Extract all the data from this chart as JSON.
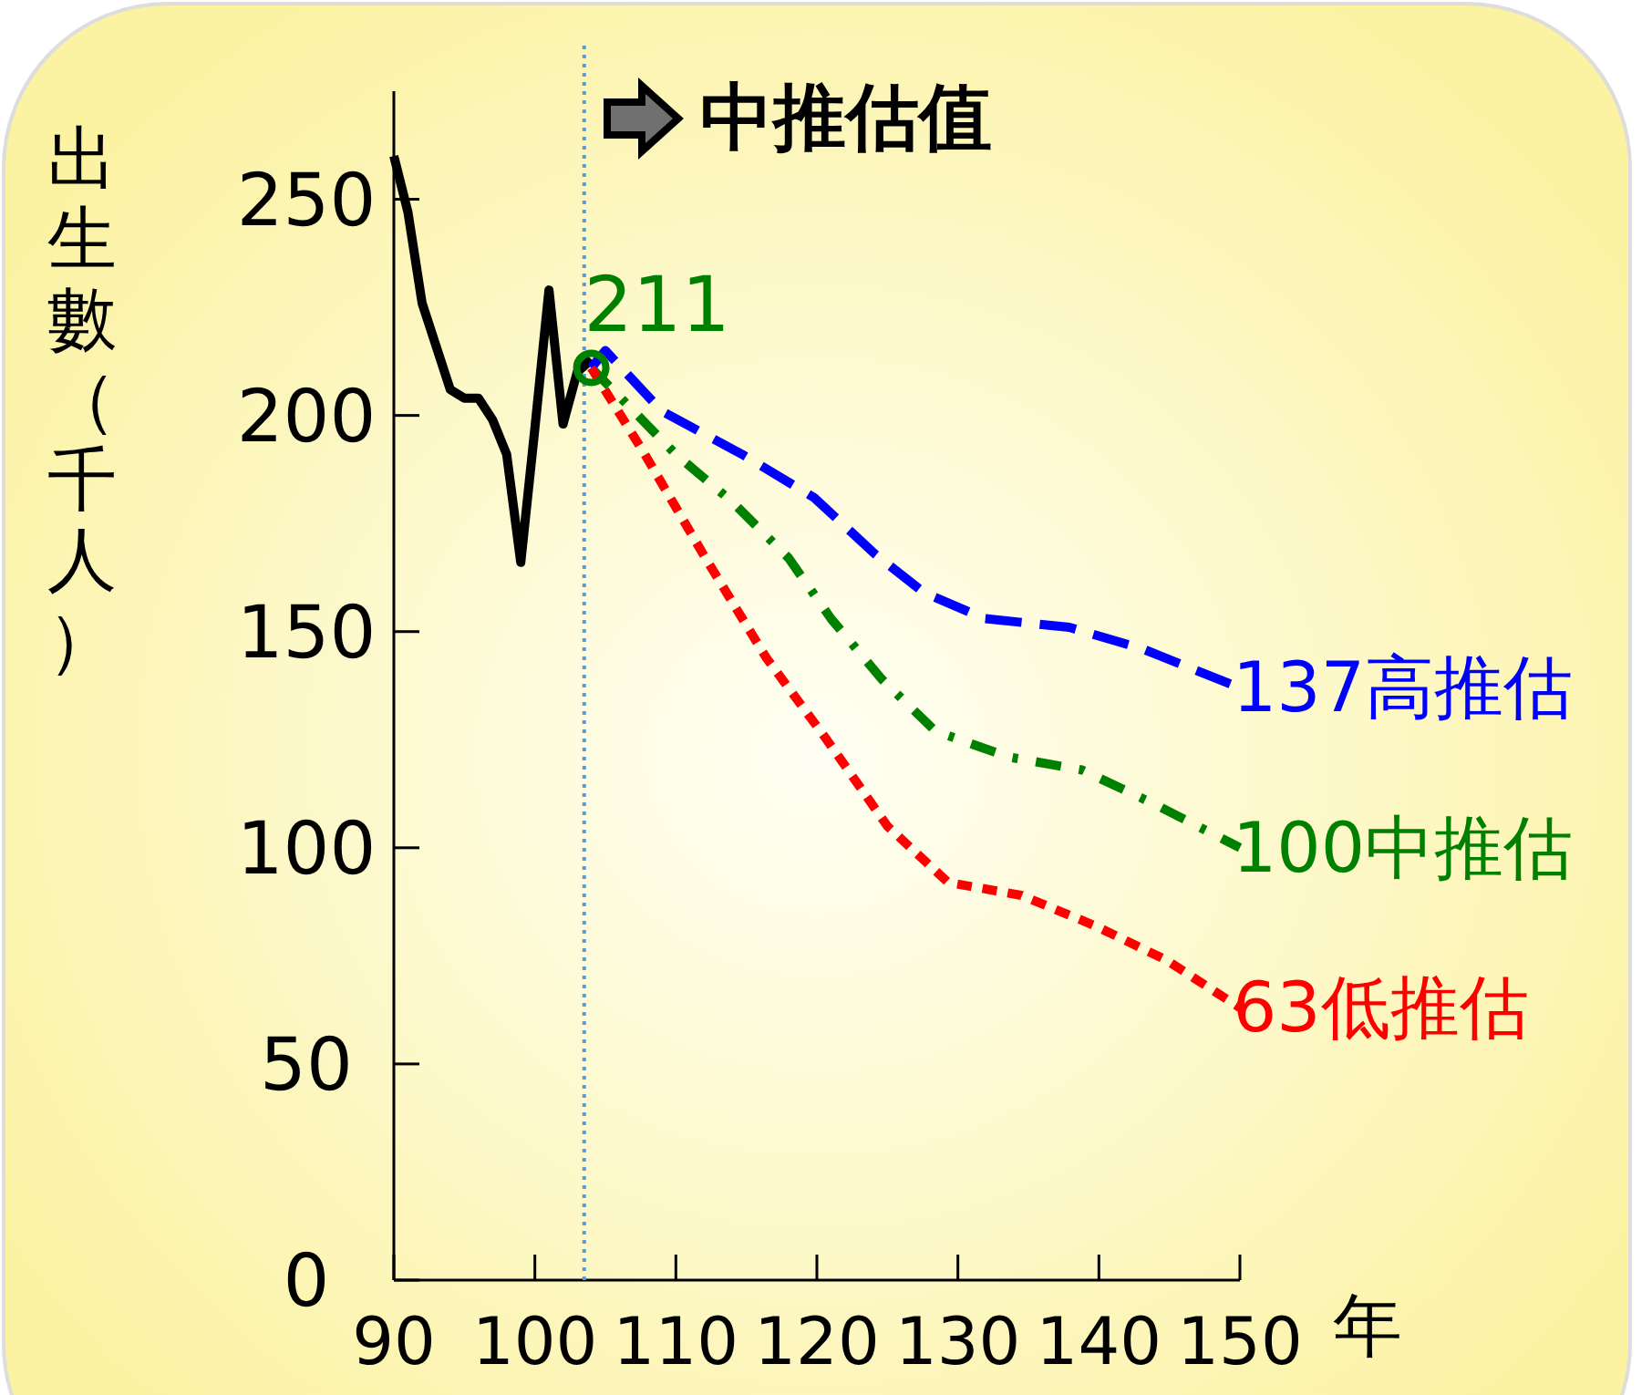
{
  "chart_data": {
    "type": "line",
    "title": "中推估值",
    "xlabel": "年",
    "ylabel": "出生數（千人）",
    "xlim": [
      90,
      150
    ],
    "xticks": [
      90,
      100,
      110,
      120,
      130,
      140,
      150
    ],
    "ylim": [
      0,
      275
    ],
    "yticks": [
      0,
      50,
      100,
      150,
      200,
      250
    ],
    "grid": false,
    "series": [
      {
        "color": "#000000",
        "line_style": "solid",
        "x": [
          90,
          91,
          92,
          93,
          94,
          95,
          96,
          97,
          98,
          99,
          100,
          101,
          102,
          103,
          104
        ],
        "values": [
          260,
          247,
          226,
          216,
          206,
          204,
          204,
          199,
          191,
          166,
          197,
          229,
          198,
          210,
          213
        ]
      },
      {
        "name": "中推估",
        "color": "#008000",
        "line_style": "dashdot",
        "x": [
          104,
          110,
          114,
          118,
          121,
          124.6,
          128.4,
          133.6,
          138.8,
          144,
          150
        ],
        "values": [
          211,
          191,
          180,
          167,
          153,
          139,
          127,
          121,
          118,
          110,
          100
        ],
        "value_labels": [
          "211",
          null,
          null,
          null,
          null,
          null,
          null,
          null,
          null,
          null,
          "100"
        ]
      },
      {
        "name": "高推估",
        "color": "#0000ff",
        "line_style": "dashed",
        "x": [
          104,
          105,
          109,
          114.7,
          119.8,
          124.1,
          127.6,
          131.9,
          137.9,
          143.1,
          150
        ],
        "values": [
          211,
          215,
          201,
          191,
          181,
          168,
          159,
          153,
          151,
          146,
          137
        ],
        "value_labels": [
          null,
          null,
          null,
          null,
          null,
          null,
          null,
          null,
          null,
          null,
          "137"
        ]
      },
      {
        "name": "低推估",
        "color": "#ff0000",
        "line_style": "dotted",
        "x": [
          104,
          107.8,
          112.1,
          116.4,
          120.7,
          125,
          129.3,
          134.5,
          139.7,
          144.8,
          150
        ],
        "values": [
          211,
          191,
          167,
          144,
          125,
          105,
          92,
          89,
          82,
          74,
          63
        ],
        "value_labels": [
          null,
          null,
          null,
          null,
          null,
          null,
          null,
          null,
          null,
          null,
          "63"
        ]
      }
    ],
    "ref_lines": [
      {
        "axis": "x",
        "value": 103.5,
        "color": "#5b9bd5",
        "line_style": "dotted"
      }
    ]
  }
}
